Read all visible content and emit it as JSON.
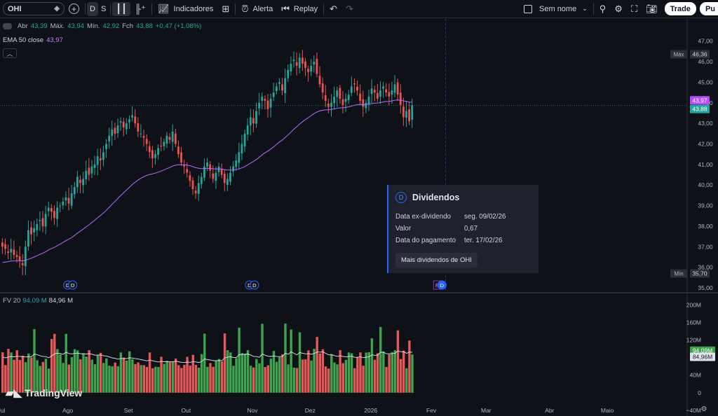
{
  "toolbar": {
    "symbol": "OHI",
    "interval_d": "D",
    "interval_s": "S",
    "indicators_label": "Indicadores",
    "alert_label": "Alerta",
    "replay_label": "Replay",
    "layout_name": "Sem nome",
    "trade_label": "Trade",
    "publish_label": "Pu"
  },
  "legend": {
    "open_label": "Abr",
    "open": "43,39",
    "high_label": "Máx.",
    "high": "43,94",
    "low_label": "Mín.",
    "low": "42,92",
    "close_label": "Fch",
    "close": "43,88",
    "change": "+0,47 (+1,08%)"
  },
  "ema": {
    "label": "EMA 50 close",
    "value": "43,97"
  },
  "volume_legend": {
    "label": "FV 20",
    "value1": "94,09 M",
    "value2": "84,96 M"
  },
  "branding": "TradingView",
  "tooltip": {
    "icon_letter": "D",
    "title": "Dividendos",
    "rows": [
      {
        "k": "Data ex-dividendo",
        "v": "seg. 09/02/26"
      },
      {
        "k": "Valor",
        "v": "0,67"
      },
      {
        "k": "Data do pagamento",
        "v": "ter. 17/02/26"
      }
    ],
    "more_button": "Mais dividendos de OHI"
  },
  "colors": {
    "up": "#26a69a",
    "down": "#ef5350",
    "ema": "#b86bff",
    "vol_up": "#3fa34d",
    "vol_down": "#e45858"
  },
  "chart_data": {
    "type": "candlestick",
    "price_axis_ticks": [
      "47,00",
      "46,00",
      "45,00",
      "44,00",
      "43,00",
      "42,00",
      "41,00",
      "40,00",
      "39,00",
      "38,00",
      "37,00",
      "36,00",
      "35,00"
    ],
    "price_range": [
      35,
      47.4
    ],
    "volume_axis_ticks": [
      "200M",
      "160M",
      "120M",
      "80M",
      "40M",
      "0",
      "−40M"
    ],
    "volume_range": [
      -45,
      210
    ],
    "x_ticks": [
      {
        "label": "Jul",
        "i": 0
      },
      {
        "label": "Ago",
        "i": 23
      },
      {
        "label": "Set",
        "i": 44
      },
      {
        "label": "Out",
        "i": 64
      },
      {
        "label": "Nov",
        "i": 87
      },
      {
        "label": "Dez",
        "i": 107
      },
      {
        "label": "2026",
        "i": 128
      },
      {
        "label": "Fev",
        "i": 149
      },
      {
        "label": "Mar",
        "i": 168
      },
      {
        "label": "Abr",
        "i": 190
      },
      {
        "label": "Maio",
        "i": 210
      }
    ],
    "max_label": {
      "label": "Máx",
      "value": "46,36"
    },
    "min_label": {
      "label": "Mín",
      "value": "35,70"
    },
    "last_ema_label": "43,97",
    "last_close_label": "43,88",
    "vol_labels": [
      "94,09M",
      "84,96M"
    ],
    "event_markers": [
      {
        "i": 23,
        "letters": [
          "D",
          "D"
        ]
      },
      {
        "i": 86,
        "letters": [
          "D",
          "D"
        ]
      },
      {
        "i": 151,
        "letters": [
          "E",
          "D"
        ]
      }
    ],
    "dividend_line_i": 153,
    "closes": [
      37.0,
      36.9,
      36.7,
      36.9,
      36.6,
      36.5,
      36.3,
      36.1,
      37.0,
      37.8,
      37.6,
      37.9,
      38.1,
      38.3,
      38.0,
      38.6,
      38.9,
      38.7,
      38.4,
      38.9,
      39.0,
      39.2,
      39.4,
      39.1,
      39.6,
      39.9,
      40.4,
      40.1,
      40.3,
      40.7,
      40.5,
      40.9,
      41.0,
      41.4,
      41.2,
      41.6,
      42.0,
      42.4,
      42.7,
      42.5,
      42.9,
      43.1,
      42.8,
      43.0,
      43.2,
      43.4,
      43.0,
      42.6,
      42.5,
      42.3,
      42.0,
      41.6,
      41.3,
      41.5,
      41.8,
      41.9,
      42.1,
      42.4,
      42.2,
      42.6,
      42.0,
      41.5,
      41.1,
      40.9,
      40.6,
      40.2,
      39.8,
      39.6,
      40.1,
      40.4,
      40.9,
      41.1,
      40.7,
      40.3,
      40.6,
      40.9,
      40.5,
      40.1,
      40.3,
      40.6,
      40.9,
      41.2,
      41.6,
      42.0,
      42.5,
      42.9,
      43.3,
      43.0,
      43.6,
      44.0,
      44.3,
      44.1,
      43.7,
      44.2,
      44.5,
      44.8,
      45.0,
      44.6,
      45.2,
      45.6,
      45.9,
      46.1,
      45.8,
      46.2,
      45.9,
      45.7,
      45.5,
      45.8,
      46.0,
      45.4,
      44.9,
      44.5,
      44.1,
      43.8,
      44.0,
      44.3,
      44.6,
      44.2,
      43.9,
      44.2,
      44.4,
      44.8,
      44.9,
      44.6,
      44.1,
      43.8,
      44.0,
      44.3,
      44.7,
      44.5,
      44.2,
      44.6,
      44.8,
      44.5,
      44.3,
      44.6,
      44.9,
      44.4,
      43.9,
      43.3,
      43.6,
      43.1,
      43.88
    ]
  }
}
